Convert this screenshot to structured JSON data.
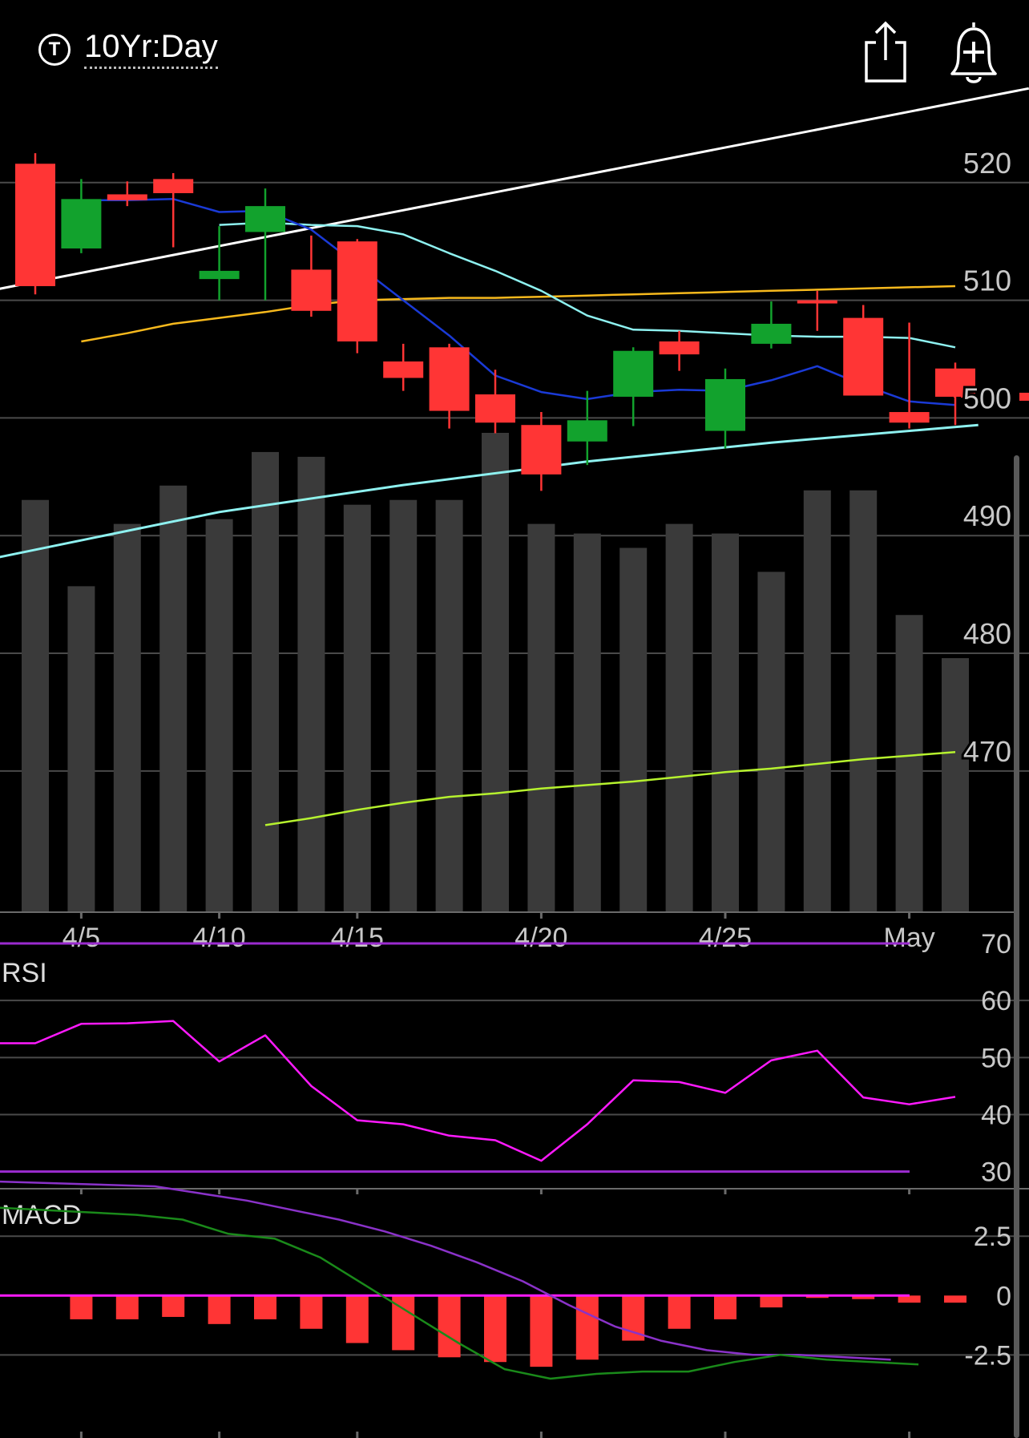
{
  "header": {
    "ticker_icon_letter": "T",
    "title": "10Yr:Day",
    "icons": [
      "share-icon",
      "add-alert-bell-icon"
    ]
  },
  "colors": {
    "up": "#12a22d",
    "down": "#ff3535",
    "volume": "#3a3a3a",
    "ma_blue": "#1a3ad6",
    "ma_cyan": "#8ef1f0",
    "ma_orange": "#f7b91d",
    "ma_green": "#b6f22e",
    "trend": "#ffffff",
    "rsi": "#ff1aff",
    "rsi_bounds": "#9b2bd0",
    "macd_line": "#8a32c9",
    "macd_signal": "#1a8a1a",
    "grid": "#4a4a4a"
  },
  "chart_data": [
    {
      "type": "candlestick",
      "ylim": [
        458,
        527
      ],
      "yticks": [
        470,
        480,
        490,
        500,
        510,
        520
      ],
      "xtick_labels": [
        {
          "label": "4/5",
          "index": 1
        },
        {
          "label": "4/10",
          "index": 4
        },
        {
          "label": "4/15",
          "index": 7
        },
        {
          "label": "4/20",
          "index": 11
        },
        {
          "label": "4/25",
          "index": 15
        },
        {
          "label": "May",
          "index": 19
        }
      ],
      "current_price": 501.8,
      "candles": [
        {
          "open": 521.6,
          "close": 511.2,
          "high": 522.5,
          "low": 510.5
        },
        {
          "open": 514.4,
          "close": 518.6,
          "high": 520.3,
          "low": 514.0
        },
        {
          "open": 519.0,
          "close": 518.5,
          "high": 520.1,
          "low": 518.0
        },
        {
          "open": 520.3,
          "close": 519.1,
          "high": 520.8,
          "low": 514.5
        },
        {
          "open": 511.8,
          "close": 512.5,
          "high": 516.3,
          "low": 510.0
        },
        {
          "open": 515.8,
          "close": 518.0,
          "high": 519.5,
          "low": 510.0
        },
        {
          "open": 512.6,
          "close": 509.1,
          "high": 515.5,
          "low": 508.6
        },
        {
          "open": 515.0,
          "close": 506.5,
          "high": 515.2,
          "low": 505.5
        },
        {
          "open": 504.8,
          "close": 503.4,
          "high": 506.3,
          "low": 502.3
        },
        {
          "open": 506.0,
          "close": 500.6,
          "high": 506.3,
          "low": 499.1
        },
        {
          "open": 502.0,
          "close": 499.6,
          "high": 504.1,
          "low": 498.7
        },
        {
          "open": 499.4,
          "close": 495.2,
          "high": 500.5,
          "low": 493.8
        },
        {
          "open": 498.0,
          "close": 499.8,
          "high": 502.3,
          "low": 496.0
        },
        {
          "open": 501.8,
          "close": 505.7,
          "high": 506.0,
          "low": 499.3
        },
        {
          "open": 506.5,
          "close": 505.4,
          "high": 507.4,
          "low": 504.0
        },
        {
          "open": 498.9,
          "close": 503.3,
          "high": 504.2,
          "low": 497.4
        },
        {
          "open": 506.3,
          "close": 508.0,
          "high": 509.9,
          "low": 505.9
        },
        {
          "open": 510.0,
          "close": 509.8,
          "high": 510.8,
          "low": 507.4
        },
        {
          "open": 508.5,
          "close": 501.9,
          "high": 509.6,
          "low": 501.9
        },
        {
          "open": 500.5,
          "close": 499.6,
          "high": 508.1,
          "low": 499.1
        },
        {
          "open": 504.2,
          "close": 501.8,
          "high": 504.7,
          "low": 499.4
        }
      ],
      "volume": [
        0.86,
        0.68,
        0.81,
        0.89,
        0.82,
        0.96,
        0.95,
        0.85,
        0.86,
        0.86,
        1.0,
        0.81,
        0.79,
        0.76,
        0.81,
        0.79,
        0.71,
        0.88,
        0.88,
        0.62,
        0.53
      ],
      "ma_blue": [
        518.5,
        518.5,
        518.6,
        517.5,
        517.6,
        516.0,
        513.0,
        510.0,
        507.0,
        503.6,
        502.2,
        501.6,
        502.2,
        502.4,
        502.3,
        503.2,
        504.4,
        502.8,
        501.4,
        501.1
      ],
      "ma_cyan": [
        516.4,
        516.6,
        516.4,
        516.3,
        515.6,
        514.0,
        512.5,
        510.8,
        508.7,
        507.5,
        507.4,
        507.2,
        507.0,
        506.9,
        506.9,
        506.8,
        506.0
      ],
      "ma_orange": [
        506.5,
        507.2,
        508.0,
        508.5,
        509.0,
        509.6,
        510.0,
        510.1,
        510.2,
        510.2,
        510.3,
        510.4,
        510.5,
        510.6,
        510.7,
        510.8,
        510.9,
        511.0,
        511.1,
        511.2
      ],
      "ma_green": [
        465.4,
        466.0,
        466.7,
        467.3,
        467.8,
        468.1,
        468.5,
        468.8,
        469.1,
        469.5,
        469.9,
        470.2,
        470.6,
        471.0,
        471.3,
        471.6
      ],
      "trend_upper": [
        [
          -1.0,
          510.8
        ],
        [
          21.6,
          528.0
        ]
      ],
      "trend_lower": [
        [
          -1.0,
          488.0
        ],
        [
          4.0,
          492.0
        ],
        [
          8.0,
          494.3
        ],
        [
          12.0,
          496.3
        ],
        [
          16.0,
          497.9
        ],
        [
          20.5,
          499.4
        ]
      ]
    },
    {
      "type": "line",
      "title": "RSI",
      "ylim": [
        27,
        70
      ],
      "yticks": [
        30,
        40,
        50,
        60,
        70
      ],
      "bounds": [
        30,
        70
      ],
      "values": [
        52.5,
        55.9,
        56.0,
        56.4,
        49.3,
        53.9,
        45.0,
        39.0,
        38.3,
        36.3,
        35.5,
        31.9,
        38.3,
        46.0,
        45.7,
        43.8,
        49.5,
        51.2,
        43.0,
        41.8,
        43.1
      ]
    },
    {
      "type": "bar+line",
      "title": "MACD",
      "ylim": [
        -6,
        4.5
      ],
      "yticks": [
        2.5,
        0,
        -2.5
      ],
      "histogram": [
        -1.0,
        -1.0,
        -0.9,
        -1.2,
        -1.0,
        -1.4,
        -2.0,
        -2.3,
        -2.6,
        -2.8,
        -3.0,
        -2.7,
        -1.9,
        -1.4,
        -1.0,
        -0.5,
        -0.1,
        -0.15,
        -0.3,
        -0.3
      ],
      "macd": [
        4.8,
        4.6,
        4.3,
        4.0,
        3.6,
        3.2,
        2.7,
        2.1,
        1.4,
        0.6,
        -0.4,
        -1.3,
        -1.9,
        -2.3,
        -2.5,
        -2.5,
        -2.6,
        -2.7
      ],
      "signal": [
        3.7,
        3.4,
        3.2,
        2.6,
        2.4,
        1.6,
        0.4,
        -0.8,
        -2.0,
        -3.1,
        -3.5,
        -3.3,
        -3.2,
        -3.2,
        -2.8,
        -2.5,
        -2.7,
        -2.8,
        -2.9
      ]
    }
  ]
}
